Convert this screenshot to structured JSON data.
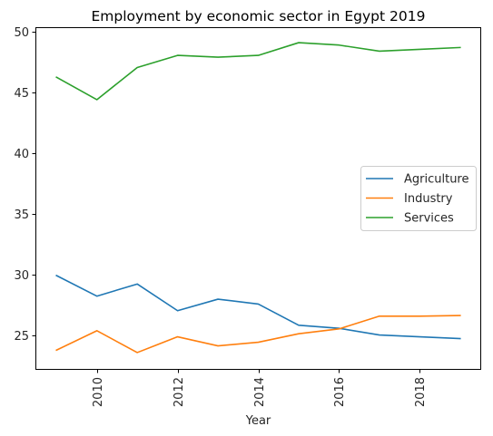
{
  "chart_data": {
    "type": "line",
    "title": "Employment by economic sector in Egypt 2019",
    "xlabel": "Year",
    "ylabel": "",
    "xlim": [
      2008.5,
      2019.5
    ],
    "ylim": [
      22.2,
      50.3
    ],
    "x_ticks": [
      2010,
      2012,
      2014,
      2016,
      2018
    ],
    "y_ticks": [
      25,
      30,
      35,
      40,
      45,
      50
    ],
    "grid": false,
    "legend_position": "center-right",
    "x": [
      2009,
      2010,
      2011,
      2012,
      2013,
      2014,
      2015,
      2016,
      2017,
      2018,
      2019
    ],
    "series": [
      {
        "name": "Agriculture",
        "color": "#1f77b4",
        "values": [
          29.9,
          28.2,
          29.2,
          27.0,
          27.95,
          27.55,
          25.8,
          25.55,
          25.0,
          24.85,
          24.7
        ]
      },
      {
        "name": "Industry",
        "color": "#ff7f0e",
        "values": [
          23.75,
          25.35,
          23.55,
          24.85,
          24.1,
          24.4,
          25.1,
          25.5,
          26.55,
          26.55,
          26.6
        ]
      },
      {
        "name": "Services",
        "color": "#2ca02c",
        "values": [
          46.25,
          44.4,
          47.05,
          48.05,
          47.9,
          48.05,
          49.1,
          48.9,
          48.4,
          48.55,
          48.7
        ]
      }
    ]
  }
}
